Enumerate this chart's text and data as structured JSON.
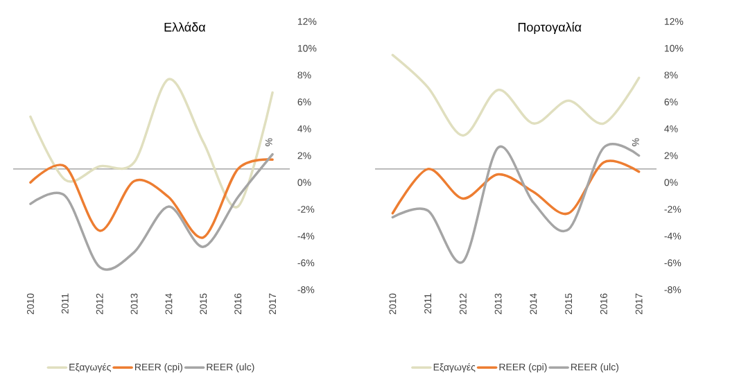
{
  "chart_data": [
    {
      "type": "line",
      "title": "Ελλάδα",
      "ylabel": "%",
      "categories": [
        "2010",
        "2011",
        "2012",
        "2013",
        "2014",
        "2015",
        "2016",
        "2017"
      ],
      "series": [
        {
          "name": "Εξαγωγές",
          "color": "#e0dfbf",
          "values": [
            4.9,
            0.2,
            1.2,
            1.5,
            7.7,
            3.0,
            -1.8,
            6.7
          ]
        },
        {
          "name": "REER (cpi)",
          "color": "#ed7d31",
          "values": [
            0.0,
            1.2,
            -3.6,
            0.1,
            -1.1,
            -4.1,
            1.0,
            1.7
          ]
        },
        {
          "name": "REER (ulc)",
          "color": "#a5a5a5",
          "values": [
            -1.6,
            -1.0,
            -6.3,
            -5.2,
            -1.8,
            -4.8,
            -1.1,
            2.1
          ]
        }
      ],
      "ylim": [
        -8,
        12
      ],
      "yticks": [
        {
          "value": -8,
          "label": "-8%"
        },
        {
          "value": -6,
          "label": "-6%"
        },
        {
          "value": -4,
          "label": "-4%"
        },
        {
          "value": -2,
          "label": "-2%"
        },
        {
          "value": 0,
          "label": "0%"
        },
        {
          "value": 2,
          "label": "2%"
        },
        {
          "value": 4,
          "label": "4%"
        },
        {
          "value": 6,
          "label": "6%"
        },
        {
          "value": 8,
          "label": "8%"
        },
        {
          "value": 10,
          "label": "10%"
        },
        {
          "value": 12,
          "label": "12%"
        }
      ],
      "ref_lines": [
        {
          "axis": "y",
          "value": 1,
          "color": "#a5a5a5"
        }
      ],
      "legend": "bottom"
    },
    {
      "type": "line",
      "title": "Πορτογαλία",
      "ylabel": "%",
      "categories": [
        "2010",
        "2011",
        "2012",
        "2013",
        "2014",
        "2015",
        "2016",
        "2017"
      ],
      "series": [
        {
          "name": "Εξαγωγές",
          "color": "#e0dfbf",
          "values": [
            9.5,
            7.1,
            3.5,
            6.9,
            4.4,
            6.1,
            4.4,
            7.8
          ]
        },
        {
          "name": "REER (cpi)",
          "color": "#ed7d31",
          "values": [
            -2.3,
            1.0,
            -1.2,
            0.6,
            -0.7,
            -2.3,
            1.5,
            0.8
          ]
        },
        {
          "name": "REER (ulc)",
          "color": "#a5a5a5",
          "values": [
            -2.6,
            -2.1,
            -5.9,
            2.6,
            -1.5,
            -3.5,
            2.6,
            2.0
          ]
        }
      ],
      "ylim": [
        -8,
        12
      ],
      "yticks": [
        {
          "value": -8,
          "label": "-8%"
        },
        {
          "value": -6,
          "label": "-6%"
        },
        {
          "value": -4,
          "label": "-4%"
        },
        {
          "value": -2,
          "label": "-2%"
        },
        {
          "value": 0,
          "label": "0%"
        },
        {
          "value": 2,
          "label": "2%"
        },
        {
          "value": 4,
          "label": "4%"
        },
        {
          "value": 6,
          "label": "6%"
        },
        {
          "value": 8,
          "label": "8%"
        },
        {
          "value": 10,
          "label": "10%"
        },
        {
          "value": 12,
          "label": "12%"
        }
      ],
      "ref_lines": [
        {
          "axis": "y",
          "value": 1,
          "color": "#a5a5a5"
        }
      ],
      "legend": "bottom"
    }
  ]
}
